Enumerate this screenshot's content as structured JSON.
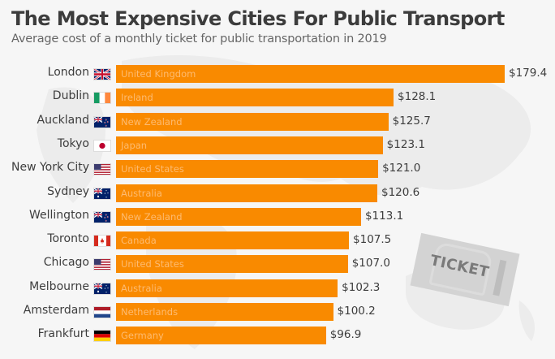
{
  "header": {
    "title": "The Most Expensive Cities For Public Transport",
    "subtitle": "Average cost of a monthly ticket for public transportation in 2019"
  },
  "decoration": {
    "ticket_label": "TICKET",
    "bar_color": "#f98a00",
    "country_label_color": "#fdbb70"
  },
  "chart_data": {
    "type": "bar",
    "orientation": "horizontal",
    "title": "The Most Expensive Cities For Public Transport",
    "subtitle": "Average cost of a monthly ticket for public transportation in 2019",
    "xlabel": "",
    "ylabel": "",
    "value_prefix": "$",
    "xlim": [
      0,
      179.4
    ],
    "grid": false,
    "categories": [
      "London",
      "Dublin",
      "Auckland",
      "Tokyo",
      "New York City",
      "Sydney",
      "Wellington",
      "Toronto",
      "Chicago",
      "Melbourne",
      "Amsterdam",
      "Frankfurt"
    ],
    "countries": [
      "United Kingdom",
      "Ireland",
      "New Zealand",
      "Japan",
      "United States",
      "Australia",
      "New Zealand",
      "Canada",
      "United States",
      "Australia",
      "Netherlands",
      "Germany"
    ],
    "flags": [
      "uk-flag",
      "ireland-flag",
      "new-zealand-flag",
      "japan-flag",
      "usa-flag",
      "australia-flag",
      "new-zealand-flag",
      "canada-flag",
      "usa-flag",
      "australia-flag",
      "netherlands-flag",
      "germany-flag"
    ],
    "values": [
      179.4,
      128.1,
      125.7,
      123.1,
      121.0,
      120.6,
      113.1,
      107.5,
      107.0,
      102.3,
      100.2,
      96.9
    ],
    "value_labels": [
      "$179.4",
      "$128.1",
      "$125.7",
      "$123.1",
      "$121.0",
      "$120.6",
      "$113.1",
      "$107.5",
      "$107.0",
      "$102.3",
      "$100.2",
      "$96.9"
    ]
  }
}
